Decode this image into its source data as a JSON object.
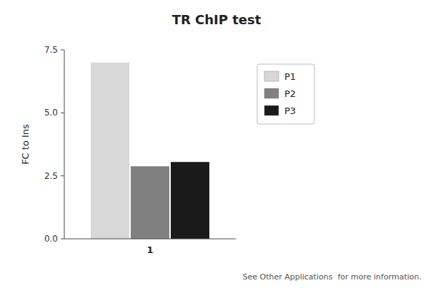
{
  "chart_data": {
    "type": "bar",
    "title": "TR ChIP test",
    "ylabel": "FC to Ins",
    "categories": [
      "1"
    ],
    "series": [
      {
        "name": "P1",
        "color": "#d8d8d8",
        "values": [
          7.0
        ]
      },
      {
        "name": "P2",
        "color": "#808080",
        "values": [
          2.88
        ]
      },
      {
        "name": "P3",
        "color": "#1a1a1a",
        "values": [
          3.05
        ]
      }
    ],
    "ylim": [
      0,
      7.5
    ],
    "yticks": [
      {
        "value": 0,
        "label": "0.0"
      },
      2.5,
      {
        "value": 5,
        "label": "5.0"
      },
      7.5
    ],
    "grid": false,
    "legend": "right",
    "footnote": "See Other Applications  for more information."
  }
}
